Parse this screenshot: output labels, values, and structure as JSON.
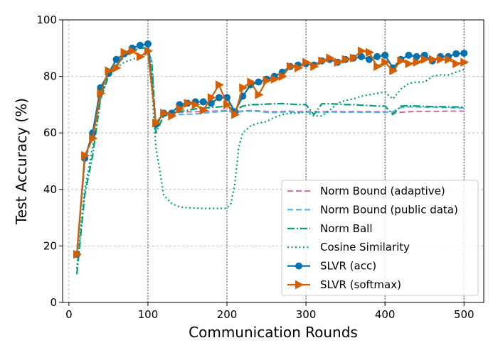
{
  "chart_data": {
    "type": "line",
    "title": "",
    "xlabel": "Communication Rounds",
    "ylabel": "Test Accuracy (%)",
    "xlim": [
      -8,
      525
    ],
    "ylim": [
      0,
      100
    ],
    "xticks": [
      0,
      100,
      200,
      300,
      400,
      500
    ],
    "yticks": [
      0,
      20,
      40,
      60,
      80,
      100
    ],
    "vlines": [
      100,
      200,
      300,
      400,
      500
    ],
    "grid": true,
    "legend_position": "lower-right",
    "series": [
      {
        "name": "Norm Bound (adaptive)",
        "color": "#cc79a7",
        "dash": "8,4",
        "marker": "none",
        "x": [
          10,
          20,
          30,
          40,
          50,
          60,
          70,
          80,
          90,
          100,
          105,
          110,
          120,
          130,
          140,
          150,
          160,
          170,
          180,
          190,
          200,
          210,
          220,
          230,
          240,
          250,
          260,
          270,
          280,
          290,
          300,
          310,
          320,
          330,
          340,
          350,
          360,
          370,
          380,
          390,
          400,
          410,
          420,
          430,
          440,
          450,
          460,
          470,
          480,
          490,
          500
        ],
        "y": [
          16,
          50,
          59,
          75,
          81,
          84,
          88,
          89,
          90,
          90,
          85,
          63,
          66,
          67,
          67.3,
          67.5,
          67.5,
          67.6,
          67.7,
          67.8,
          68,
          67.5,
          67.8,
          67.9,
          67.8,
          67.6,
          67.5,
          67.6,
          67.7,
          67.5,
          67.6,
          67.5,
          67.5,
          67.6,
          67.6,
          67.5,
          67.6,
          67.5,
          67.6,
          67.5,
          67.5,
          67,
          67.3,
          67.5,
          67.6,
          67.6,
          67.6,
          67.6,
          67.7,
          67.7,
          67.7
        ]
      },
      {
        "name": "Norm Bound (public data)",
        "color": "#56b4e9",
        "dash": "8,4",
        "marker": "none",
        "x": [
          10,
          20,
          30,
          40,
          50,
          60,
          70,
          80,
          90,
          100,
          105,
          110,
          120,
          130,
          140,
          150,
          160,
          170,
          180,
          190,
          200,
          210,
          220,
          230,
          240,
          250,
          260,
          270,
          280,
          290,
          300,
          310,
          320,
          330,
          340,
          350,
          360,
          370,
          380,
          390,
          400,
          410,
          420,
          430,
          440,
          450,
          460,
          470,
          480,
          490,
          500
        ],
        "y": [
          16,
          50,
          59,
          75,
          81,
          84,
          88,
          89,
          90,
          90,
          85,
          63,
          66,
          66.3,
          66.5,
          66.6,
          66.7,
          67,
          67.3,
          67.5,
          67.7,
          67.2,
          67.6,
          67.7,
          67.6,
          67.3,
          67.2,
          67.4,
          67.5,
          67.3,
          67.4,
          67.3,
          67.3,
          67.4,
          67.4,
          67.3,
          67.4,
          67.3,
          67.4,
          67.3,
          67.3,
          67.5,
          69,
          69.2,
          69.2,
          69.1,
          69.1,
          69,
          69,
          68.8,
          68.8
        ]
      },
      {
        "name": "Norm Ball",
        "color": "#009e73",
        "dash": "10,3,2,3",
        "marker": "none",
        "x": [
          10,
          20,
          30,
          40,
          50,
          60,
          70,
          80,
          90,
          100,
          105,
          110,
          120,
          130,
          140,
          150,
          160,
          170,
          180,
          190,
          200,
          210,
          220,
          230,
          240,
          250,
          260,
          270,
          280,
          290,
          300,
          310,
          320,
          330,
          340,
          350,
          360,
          370,
          380,
          390,
          400,
          410,
          420,
          430,
          440,
          450,
          460,
          470,
          480,
          490,
          500
        ],
        "y": [
          10,
          38,
          52,
          72,
          80,
          84,
          87,
          89,
          90,
          90,
          84,
          60,
          66,
          67,
          67.5,
          68,
          68.5,
          68.8,
          69,
          69.2,
          69.5,
          68,
          69.5,
          70,
          70,
          70.2,
          70.3,
          70.4,
          70.2,
          70,
          70,
          66.5,
          70.3,
          70.3,
          70.2,
          70,
          70,
          69.8,
          69.7,
          69.5,
          69.5,
          66.5,
          69.5,
          69.6,
          69.5,
          69.4,
          69.3,
          69.3,
          69.2,
          69.2,
          69.1
        ]
      },
      {
        "name": "Cosine Similarity",
        "color": "#009e73",
        "dash": "2,3.5",
        "marker": "none",
        "x": [
          10,
          20,
          30,
          40,
          50,
          60,
          70,
          80,
          90,
          100,
          105,
          110,
          120,
          130,
          140,
          150,
          160,
          170,
          180,
          190,
          200,
          205,
          210,
          215,
          220,
          230,
          240,
          250,
          260,
          270,
          280,
          290,
          300,
          310,
          320,
          330,
          340,
          350,
          360,
          370,
          380,
          390,
          400,
          410,
          420,
          430,
          440,
          450,
          460,
          470,
          480,
          490,
          500
        ],
        "y": [
          12,
          40,
          55,
          72,
          80,
          83,
          85,
          86,
          87,
          88,
          75,
          55,
          38,
          35,
          33.8,
          33.5,
          33.4,
          33.3,
          33.3,
          33.3,
          33.3,
          35,
          42,
          55,
          60,
          62.5,
          63.5,
          64,
          65.5,
          66.5,
          67,
          67,
          67.5,
          66,
          66,
          68,
          70.5,
          71.5,
          72,
          73,
          73.5,
          74,
          74.5,
          72,
          75.5,
          77.5,
          78,
          78,
          80,
          80.5,
          80.5,
          81.5,
          82.5
        ]
      },
      {
        "name": "SLVR (acc)",
        "color": "#0072b2",
        "dash": "none",
        "marker": "circle",
        "x": [
          10,
          20,
          30,
          40,
          50,
          60,
          70,
          80,
          90,
          100,
          110,
          120,
          130,
          140,
          150,
          160,
          170,
          180,
          190,
          200,
          210,
          220,
          230,
          240,
          250,
          260,
          270,
          280,
          290,
          300,
          310,
          320,
          330,
          340,
          350,
          360,
          370,
          380,
          390,
          400,
          410,
          420,
          430,
          440,
          450,
          460,
          470,
          480,
          490,
          500
        ],
        "y": [
          17,
          51,
          60,
          76,
          81,
          86,
          88,
          90,
          91,
          91.5,
          63,
          67,
          67,
          70,
          70.5,
          71,
          71,
          70.5,
          72.5,
          72.5,
          67.5,
          73,
          77,
          78,
          79,
          80,
          81.5,
          83.5,
          84,
          84.5,
          84,
          85.5,
          86,
          85,
          86,
          86.5,
          87,
          86,
          87,
          87.5,
          83,
          86,
          87.5,
          87,
          87.5,
          85.5,
          87,
          87,
          88,
          88.2
        ]
      },
      {
        "name": "SLVR (softmax)",
        "color": "#d55e00",
        "dash": "none",
        "marker": "triangle-right",
        "x": [
          10,
          20,
          30,
          40,
          50,
          60,
          70,
          80,
          90,
          100,
          110,
          120,
          130,
          140,
          150,
          160,
          170,
          180,
          190,
          200,
          210,
          220,
          230,
          240,
          250,
          260,
          270,
          280,
          290,
          300,
          310,
          320,
          330,
          340,
          350,
          360,
          370,
          380,
          390,
          400,
          410,
          420,
          430,
          440,
          450,
          460,
          470,
          480,
          490,
          500
        ],
        "y": [
          17,
          52,
          58,
          74,
          82,
          83,
          88.5,
          89,
          87,
          89,
          63.5,
          67,
          66,
          68.5,
          70.5,
          70,
          68,
          72.5,
          77,
          70,
          66.5,
          76,
          78,
          73.5,
          78.5,
          79,
          80,
          83.5,
          83,
          85,
          83.5,
          85.5,
          86.5,
          85,
          86,
          86.5,
          89,
          88.5,
          83.5,
          85,
          82,
          85.5,
          84.5,
          85,
          86,
          86,
          86,
          86,
          84.5,
          85
        ]
      }
    ]
  }
}
